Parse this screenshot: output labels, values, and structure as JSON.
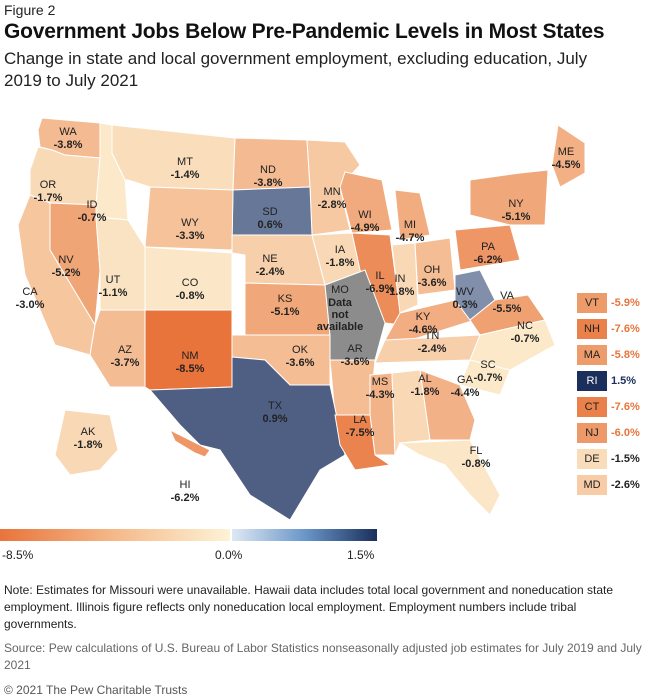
{
  "figure_label": "Figure 2",
  "title": "Government Jobs Below Pre-Pandemic Levels in Most States",
  "subtitle": "Change in state and local government employment, excluding education, July 2019 to July 2021",
  "legend": {
    "min_label": "-8.5%",
    "mid_label": "0.0%",
    "max_label": "1.5%",
    "min_value": -8.5,
    "mid_value": 0.0,
    "max_value": 1.5,
    "neg_color_dark": "#e8743b",
    "neutral_color": "#fdf3d6",
    "pos_color_light": "#dfe8f3",
    "pos_color_dark": "#1b2f5c"
  },
  "states": [
    {
      "abbr": "WA",
      "value": -3.8,
      "label": "-3.8%"
    },
    {
      "abbr": "OR",
      "value": -1.7,
      "label": "-1.7%"
    },
    {
      "abbr": "ID",
      "value": -0.7,
      "label": "-0.7%"
    },
    {
      "abbr": "MT",
      "value": -1.4,
      "label": "-1.4%"
    },
    {
      "abbr": "ND",
      "value": -3.8,
      "label": "-3.8%"
    },
    {
      "abbr": "MN",
      "value": -2.8,
      "label": "-2.8%"
    },
    {
      "abbr": "SD",
      "value": 0.6,
      "label": "0.6%"
    },
    {
      "abbr": "WY",
      "value": -3.3,
      "label": "-3.3%"
    },
    {
      "abbr": "WI",
      "value": -4.9,
      "label": "-4.9%"
    },
    {
      "abbr": "MI",
      "value": -4.7,
      "label": "-4.7%"
    },
    {
      "abbr": "NY",
      "value": -5.1,
      "label": "-5.1%"
    },
    {
      "abbr": "ME",
      "value": -4.5,
      "label": "-4.5%"
    },
    {
      "abbr": "NV",
      "value": -5.2,
      "label": "-5.2%"
    },
    {
      "abbr": "UT",
      "value": -1.1,
      "label": "-1.1%"
    },
    {
      "abbr": "CO",
      "value": -0.8,
      "label": "-0.8%"
    },
    {
      "abbr": "NE",
      "value": -2.4,
      "label": "-2.4%"
    },
    {
      "abbr": "IA",
      "value": -1.8,
      "label": "-1.8%"
    },
    {
      "abbr": "IL",
      "value": -6.9,
      "label": "-6.9%"
    },
    {
      "abbr": "IN",
      "value": -1.8,
      "label": "-1.8%"
    },
    {
      "abbr": "OH",
      "value": -3.6,
      "label": "-3.6%"
    },
    {
      "abbr": "PA",
      "value": -6.2,
      "label": "-6.2%"
    },
    {
      "abbr": "CA",
      "value": -3.0,
      "label": "-3.0%"
    },
    {
      "abbr": "KS",
      "value": -5.1,
      "label": "-5.1%"
    },
    {
      "abbr": "MO",
      "value": null,
      "label": "Data not available"
    },
    {
      "abbr": "KY",
      "value": -4.6,
      "label": "-4.6%"
    },
    {
      "abbr": "WV",
      "value": 0.3,
      "label": "0.3%"
    },
    {
      "abbr": "VA",
      "value": -5.5,
      "label": "-5.5%"
    },
    {
      "abbr": "AZ",
      "value": -3.7,
      "label": "-3.7%"
    },
    {
      "abbr": "NM",
      "value": -8.5,
      "label": "-8.5%"
    },
    {
      "abbr": "OK",
      "value": -3.6,
      "label": "-3.6%"
    },
    {
      "abbr": "AR",
      "value": -3.6,
      "label": "-3.6%"
    },
    {
      "abbr": "TN",
      "value": -2.4,
      "label": "-2.4%"
    },
    {
      "abbr": "NC",
      "value": -0.7,
      "label": "-0.7%"
    },
    {
      "abbr": "SC",
      "value": -0.7,
      "label": "-0.7%"
    },
    {
      "abbr": "TX",
      "value": 0.9,
      "label": "0.9%"
    },
    {
      "abbr": "MS",
      "value": -4.3,
      "label": "-4.3%"
    },
    {
      "abbr": "AL",
      "value": -1.8,
      "label": "-1.8%"
    },
    {
      "abbr": "GA",
      "value": -4.4,
      "label": "-4.4%"
    },
    {
      "abbr": "LA",
      "value": -7.5,
      "label": "-7.5%"
    },
    {
      "abbr": "FL",
      "value": -0.8,
      "label": "-0.8%"
    },
    {
      "abbr": "AK",
      "value": -1.8,
      "label": "-1.8%"
    },
    {
      "abbr": "HI",
      "value": -6.2,
      "label": "-6.2%"
    }
  ],
  "northeast_callouts": [
    {
      "abbr": "VT",
      "value": -5.9,
      "label": "-5.9%"
    },
    {
      "abbr": "NH",
      "value": -7.6,
      "label": "-7.6%"
    },
    {
      "abbr": "MA",
      "value": -5.8,
      "label": "-5.8%"
    },
    {
      "abbr": "RI",
      "value": 1.5,
      "label": "1.5%"
    },
    {
      "abbr": "CT",
      "value": -7.6,
      "label": "-7.6%"
    },
    {
      "abbr": "NJ",
      "value": -6.0,
      "label": "-6.0%"
    },
    {
      "abbr": "DE",
      "value": -1.5,
      "label": "-1.5%"
    },
    {
      "abbr": "MD",
      "value": -2.6,
      "label": "-2.6%"
    }
  ],
  "note": "Note: Estimates for Missouri were unavailable. Hawaii data includes total local government and noneducation state employment. Illinois figure reflects only noneducation local employment. Employment numbers include tribal governments.",
  "source": "Source: Pew calculations of U.S. Bureau of Labor Statistics nonseasonally adjusted job estimates for July 2019 and July 2021",
  "copyright": "© 2021 The Pew Charitable Trusts"
}
